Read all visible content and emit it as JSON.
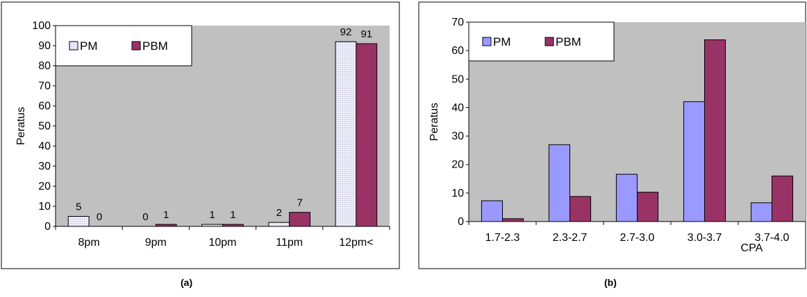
{
  "captions": [
    "(a)",
    "(b)"
  ],
  "chart_data": [
    {
      "type": "bar",
      "caption": "(a)",
      "ylabel": "Peratus",
      "xlabel": "",
      "ylim": [
        0,
        100
      ],
      "yticks": [
        0,
        10,
        20,
        30,
        40,
        50,
        60,
        70,
        80,
        90,
        100
      ],
      "grid": false,
      "legend_placement": "top-left",
      "show_value_labels": true,
      "categories": [
        "8pm",
        "9pm",
        "10pm",
        "11pm",
        "12pm<"
      ],
      "series": [
        {
          "name": "PM",
          "values": [
            5,
            0,
            1,
            2,
            92
          ],
          "labels": [
            "5",
            "0",
            "1",
            "2",
            "92"
          ],
          "color": "#e8e8f8",
          "pattern": "dots"
        },
        {
          "name": "PBM",
          "values": [
            0,
            1,
            1,
            7,
            91
          ],
          "labels": [
            "0",
            "1",
            "1",
            "7",
            "91"
          ],
          "color": "#993366"
        }
      ]
    },
    {
      "type": "bar",
      "caption": "(b)",
      "ylabel": "Peratus",
      "xlabel": "CPA",
      "ylim": [
        0,
        70
      ],
      "yticks": [
        0,
        10,
        20,
        30,
        40,
        50,
        60,
        70
      ],
      "grid": false,
      "legend_placement": "top-left",
      "show_value_labels": false,
      "categories": [
        "1.7-2.3",
        "2.3-2.7",
        "2.7-3.0",
        "3.0-3.7",
        "3.7-4.0"
      ],
      "series": [
        {
          "name": "PM",
          "values": [
            7.3,
            27,
            16.6,
            42.1,
            6.6
          ],
          "color": "#9999ff"
        },
        {
          "name": "PBM",
          "values": [
            1,
            8.8,
            10.3,
            63.8,
            16
          ],
          "color": "#993366"
        }
      ]
    }
  ]
}
